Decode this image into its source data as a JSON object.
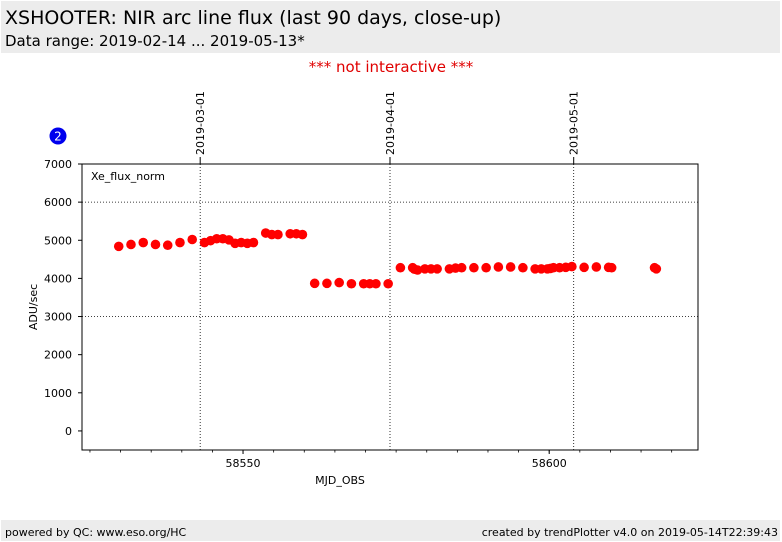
{
  "header": {
    "title": "XSHOOTER: NIR arc line flux (last 90 days, close-up)",
    "subtitle": "Data range: 2019-02-14 ... 2019-05-13*"
  },
  "notice": "*** not interactive ***",
  "badge": "2",
  "footer": {
    "left": "powered by QC: www.eso.org/HC",
    "right": "created by trendPlotter v4.0 on 2019-05-14T22:39:43"
  },
  "colors": {
    "points": "#ff0000",
    "badge": "#0000ee",
    "notice": "#e00000",
    "header_bg": "#ececec"
  },
  "chart_data": {
    "type": "scatter",
    "xlabel": "MJD_OBS",
    "ylabel": "ADU/sec",
    "xlim": [
      58523.7,
      58624.3
    ],
    "ylim": [
      -500,
      7000
    ],
    "xticks": [
      58550,
      58600
    ],
    "xminor_step": 5,
    "yticks": [
      0,
      1000,
      2000,
      3000,
      4000,
      5000,
      6000,
      7000
    ],
    "hgrid": [
      3000,
      6000
    ],
    "date_lines": [
      {
        "x": 58543.0,
        "label": "2019-03-01"
      },
      {
        "x": 58574.0,
        "label": "2019-04-01"
      },
      {
        "x": 58604.0,
        "label": "2019-05-01"
      }
    ],
    "series": [
      {
        "name": "Xe_flux_norm",
        "x": [
          58529.7,
          58531.7,
          58533.7,
          58535.7,
          58537.7,
          58539.7,
          58541.7,
          58543.7,
          58544.7,
          58545.7,
          58546.7,
          58547.7,
          58548.7,
          58549.7,
          58550.7,
          58551.7,
          58553.7,
          58554.7,
          58555.7,
          58557.7,
          58558.7,
          58559.7,
          58561.7,
          58563.7,
          58565.7,
          58567.7,
          58569.7,
          58570.7,
          58571.7,
          58573.7,
          58575.7,
          58577.7,
          58578.0,
          58578.5,
          58579.7,
          58580.7,
          58581.7,
          58583.7,
          58584.7,
          58585.7,
          58587.7,
          58589.7,
          58591.7,
          58593.7,
          58595.7,
          58597.7,
          58598.7,
          58599.7,
          58600.2,
          58600.7,
          58601.7,
          58602.7,
          58603.7,
          58605.7,
          58607.7,
          58609.7,
          58610.2,
          58617.2,
          58617.5
        ],
        "y": [
          4840,
          4890,
          4940,
          4890,
          4870,
          4940,
          5020,
          4940,
          4990,
          5040,
          5040,
          5010,
          4920,
          4940,
          4920,
          4940,
          5190,
          5150,
          5150,
          5170,
          5170,
          5150,
          3870,
          3870,
          3890,
          3860,
          3860,
          3860,
          3860,
          3860,
          4280,
          4280,
          4240,
          4220,
          4250,
          4250,
          4250,
          4250,
          4270,
          4280,
          4280,
          4280,
          4300,
          4300,
          4280,
          4250,
          4250,
          4250,
          4260,
          4280,
          4280,
          4290,
          4310,
          4290,
          4300,
          4290,
          4280,
          4280,
          4250
        ]
      }
    ]
  }
}
